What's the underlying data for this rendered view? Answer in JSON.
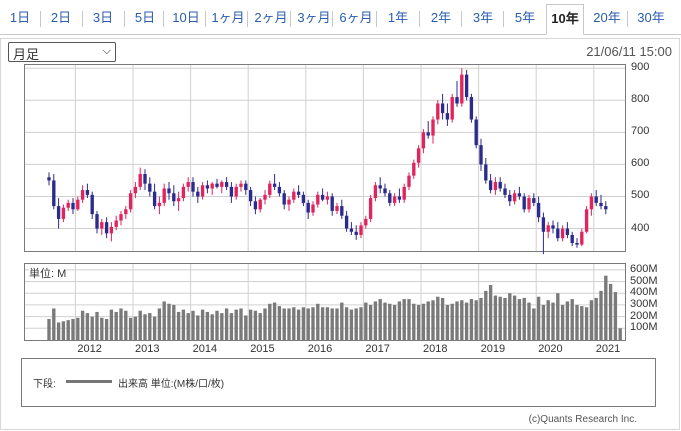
{
  "tabs": [
    {
      "label": "1日",
      "active": false
    },
    {
      "label": "2日",
      "active": false
    },
    {
      "label": "3日",
      "active": false
    },
    {
      "label": "5日",
      "active": false
    },
    {
      "label": "10日",
      "active": false
    },
    {
      "label": "1ヶ月",
      "active": false
    },
    {
      "label": "2ヶ月",
      "active": false
    },
    {
      "label": "3ヶ月",
      "active": false
    },
    {
      "label": "6ヶ月",
      "active": false
    },
    {
      "label": "1年",
      "active": false
    },
    {
      "label": "2年",
      "active": false
    },
    {
      "label": "3年",
      "active": false
    },
    {
      "label": "5年",
      "active": false
    },
    {
      "label": "10年",
      "active": true
    },
    {
      "label": "20年",
      "active": false
    },
    {
      "label": "30年",
      "active": false
    }
  ],
  "period_select": {
    "value": "月足"
  },
  "timestamp": "21/06/11 15:00",
  "colors": {
    "up": "#e0245e",
    "down": "#2b2b8c",
    "volume": "#7a7a7a",
    "grid": "#d0d0d0",
    "tab_link": "#2a5db0"
  },
  "icons": {
    "dropdown": "chevron-down-icon"
  },
  "volume_unit_label": "単位: M",
  "legend": {
    "prefix": "下段:",
    "series_label": "出来高 単位:(M株/口/枚)"
  },
  "credit": "(c)Quants Research Inc.",
  "chart_data": [
    {
      "type": "candlestick",
      "ylim": [
        330,
        910
      ],
      "yticks": [
        "900",
        "800",
        "700",
        "600",
        "500",
        "400"
      ],
      "ytick_values": [
        900,
        800,
        700,
        600,
        500,
        400
      ],
      "x_labels": [
        "2012",
        "2013",
        "2014",
        "2015",
        "2016",
        "2017",
        "2018",
        "2019",
        "2020",
        "2021"
      ],
      "start": "2011-07",
      "months": [
        "2011-07",
        "2011-08",
        "2011-09",
        "2011-10",
        "2011-11",
        "2011-12",
        "2012-01",
        "2012-02",
        "2012-03",
        "2012-04",
        "2012-05",
        "2012-06",
        "2012-07",
        "2012-08",
        "2012-09",
        "2012-10",
        "2012-11",
        "2012-12",
        "2013-01",
        "2013-02",
        "2013-03",
        "2013-04",
        "2013-05",
        "2013-06",
        "2013-07",
        "2013-08",
        "2013-09",
        "2013-10",
        "2013-11",
        "2013-12",
        "2014-01",
        "2014-02",
        "2014-03",
        "2014-04",
        "2014-05",
        "2014-06",
        "2014-07",
        "2014-08",
        "2014-09",
        "2014-10",
        "2014-11",
        "2014-12",
        "2015-01",
        "2015-02",
        "2015-03",
        "2015-04",
        "2015-05",
        "2015-06",
        "2015-07",
        "2015-08",
        "2015-09",
        "2015-10",
        "2015-11",
        "2015-12",
        "2016-01",
        "2016-02",
        "2016-03",
        "2016-04",
        "2016-05",
        "2016-06",
        "2016-07",
        "2016-08",
        "2016-09",
        "2016-10",
        "2016-11",
        "2016-12",
        "2017-01",
        "2017-02",
        "2017-03",
        "2017-04",
        "2017-05",
        "2017-06",
        "2017-07",
        "2017-08",
        "2017-09",
        "2017-10",
        "2017-11",
        "2017-12",
        "2018-01",
        "2018-02",
        "2018-03",
        "2018-04",
        "2018-05",
        "2018-06",
        "2018-07",
        "2018-08",
        "2018-09",
        "2018-10",
        "2018-11",
        "2018-12",
        "2019-01",
        "2019-02",
        "2019-03",
        "2019-04",
        "2019-05",
        "2019-06",
        "2019-07",
        "2019-08",
        "2019-09",
        "2019-10",
        "2019-11",
        "2019-12",
        "2020-01",
        "2020-02",
        "2020-03",
        "2020-04",
        "2020-05",
        "2020-06",
        "2020-07",
        "2020-08",
        "2020-09",
        "2020-10",
        "2020-11",
        "2020-12",
        "2021-01",
        "2021-02",
        "2021-03",
        "2021-04",
        "2021-05",
        "2021-06"
      ],
      "ohlc": [
        [
          560,
          575,
          535,
          550
        ],
        [
          550,
          570,
          460,
          470
        ],
        [
          470,
          495,
          400,
          430
        ],
        [
          430,
          475,
          420,
          465
        ],
        [
          465,
          490,
          455,
          480
        ],
        [
          480,
          495,
          445,
          460
        ],
        [
          460,
          500,
          455,
          490
        ],
        [
          490,
          535,
          480,
          520
        ],
        [
          520,
          540,
          495,
          505
        ],
        [
          505,
          515,
          430,
          445
        ],
        [
          445,
          455,
          385,
          400
        ],
        [
          400,
          430,
          380,
          420
        ],
        [
          420,
          435,
          370,
          385
        ],
        [
          385,
          420,
          360,
          405
        ],
        [
          405,
          440,
          395,
          425
        ],
        [
          425,
          455,
          410,
          445
        ],
        [
          445,
          470,
          430,
          460
        ],
        [
          460,
          520,
          450,
          510
        ],
        [
          510,
          545,
          495,
          530
        ],
        [
          530,
          590,
          520,
          570
        ],
        [
          570,
          585,
          520,
          540
        ],
        [
          540,
          560,
          500,
          515
        ],
        [
          515,
          540,
          460,
          470
        ],
        [
          470,
          500,
          445,
          480
        ],
        [
          480,
          540,
          470,
          525
        ],
        [
          525,
          545,
          490,
          510
        ],
        [
          510,
          535,
          470,
          485
        ],
        [
          485,
          515,
          455,
          495
        ],
        [
          495,
          540,
          485,
          530
        ],
        [
          530,
          560,
          515,
          545
        ],
        [
          545,
          560,
          500,
          515
        ],
        [
          515,
          530,
          480,
          500
        ],
        [
          500,
          545,
          490,
          535
        ],
        [
          535,
          550,
          510,
          525
        ],
        [
          525,
          545,
          505,
          540
        ],
        [
          540,
          555,
          525,
          530
        ],
        [
          530,
          550,
          510,
          545
        ],
        [
          545,
          560,
          520,
          530
        ],
        [
          530,
          545,
          480,
          500
        ],
        [
          500,
          540,
          490,
          530
        ],
        [
          530,
          550,
          515,
          540
        ],
        [
          540,
          550,
          505,
          520
        ],
        [
          520,
          530,
          470,
          485
        ],
        [
          485,
          500,
          445,
          460
        ],
        [
          460,
          495,
          450,
          490
        ],
        [
          490,
          520,
          475,
          505
        ],
        [
          505,
          550,
          495,
          540
        ],
        [
          540,
          570,
          520,
          530
        ],
        [
          530,
          545,
          500,
          510
        ],
        [
          510,
          520,
          460,
          475
        ],
        [
          475,
          500,
          455,
          490
        ],
        [
          490,
          525,
          480,
          515
        ],
        [
          515,
          535,
          495,
          505
        ],
        [
          505,
          515,
          470,
          480
        ],
        [
          480,
          490,
          430,
          450
        ],
        [
          450,
          485,
          440,
          475
        ],
        [
          475,
          515,
          465,
          505
        ],
        [
          505,
          525,
          485,
          490
        ],
        [
          490,
          515,
          475,
          500
        ],
        [
          500,
          510,
          440,
          455
        ],
        [
          455,
          480,
          445,
          470
        ],
        [
          470,
          490,
          430,
          440
        ],
        [
          440,
          455,
          390,
          400
        ],
        [
          400,
          420,
          380,
          390
        ],
        [
          390,
          410,
          365,
          380
        ],
        [
          380,
          420,
          370,
          410
        ],
        [
          410,
          440,
          400,
          430
        ],
        [
          430,
          505,
          420,
          495
        ],
        [
          495,
          545,
          485,
          535
        ],
        [
          535,
          560,
          510,
          525
        ],
        [
          525,
          540,
          500,
          510
        ],
        [
          510,
          520,
          470,
          480
        ],
        [
          480,
          510,
          470,
          500
        ],
        [
          500,
          525,
          480,
          490
        ],
        [
          490,
          540,
          480,
          530
        ],
        [
          530,
          575,
          520,
          565
        ],
        [
          565,
          615,
          555,
          605
        ],
        [
          605,
          660,
          590,
          650
        ],
        [
          650,
          710,
          635,
          700
        ],
        [
          700,
          735,
          680,
          690
        ],
        [
          690,
          750,
          665,
          740
        ],
        [
          740,
          800,
          725,
          790
        ],
        [
          790,
          820,
          740,
          760
        ],
        [
          760,
          790,
          720,
          740
        ],
        [
          740,
          820,
          730,
          810
        ],
        [
          810,
          860,
          780,
          790
        ],
        [
          790,
          900,
          780,
          880
        ],
        [
          880,
          895,
          800,
          810
        ],
        [
          810,
          820,
          730,
          740
        ],
        [
          740,
          750,
          650,
          660
        ],
        [
          660,
          680,
          580,
          600
        ],
        [
          600,
          620,
          540,
          550
        ],
        [
          550,
          570,
          510,
          520
        ],
        [
          520,
          560,
          505,
          545
        ],
        [
          545,
          560,
          515,
          525
        ],
        [
          525,
          540,
          495,
          505
        ],
        [
          505,
          520,
          470,
          485
        ],
        [
          485,
          520,
          475,
          510
        ],
        [
          510,
          530,
          490,
          500
        ],
        [
          500,
          510,
          450,
          460
        ],
        [
          460,
          505,
          450,
          495
        ],
        [
          495,
          510,
          470,
          480
        ],
        [
          480,
          500,
          420,
          435
        ],
        [
          435,
          450,
          320,
          390
        ],
        [
          390,
          420,
          370,
          410
        ],
        [
          410,
          425,
          385,
          400
        ],
        [
          400,
          420,
          360,
          370
        ],
        [
          370,
          410,
          360,
          400
        ],
        [
          400,
          420,
          370,
          380
        ],
        [
          380,
          390,
          345,
          355
        ],
        [
          355,
          370,
          340,
          350
        ],
        [
          350,
          400,
          345,
          390
        ],
        [
          390,
          470,
          385,
          460
        ],
        [
          460,
          510,
          440,
          500
        ],
        [
          500,
          520,
          470,
          480
        ],
        [
          480,
          505,
          460,
          470
        ],
        [
          470,
          485,
          445,
          460
        ]
      ],
      "volume_ylim": [
        0,
        650
      ],
      "volume_yticks": [
        "600M",
        "500M",
        "400M",
        "300M",
        "200M",
        "100M"
      ],
      "volume_ytick_values": [
        600,
        500,
        400,
        300,
        200,
        100
      ],
      "volume": [
        180,
        270,
        150,
        160,
        170,
        180,
        190,
        250,
        230,
        200,
        240,
        190,
        180,
        260,
        240,
        270,
        250,
        190,
        200,
        250,
        220,
        230,
        200,
        270,
        330,
        310,
        300,
        240,
        260,
        230,
        250,
        210,
        260,
        240,
        220,
        250,
        230,
        270,
        230,
        260,
        270,
        210,
        260,
        250,
        230,
        270,
        310,
        320,
        290,
        270,
        270,
        280,
        260,
        280,
        270,
        280,
        310,
        280,
        280,
        270,
        270,
        320,
        280,
        260,
        270,
        280,
        320,
        300,
        330,
        350,
        320,
        310,
        300,
        330,
        350,
        350,
        310,
        300,
        310,
        330,
        340,
        370,
        360,
        300,
        310,
        330,
        340,
        320,
        350,
        340,
        360,
        420,
        470,
        380,
        370,
        360,
        400,
        380,
        350,
        360,
        320,
        270,
        370,
        300,
        340,
        320,
        400,
        300,
        330,
        350,
        300,
        290,
        280,
        340,
        360,
        420,
        550,
        480,
        410,
        100
      ]
    }
  ]
}
